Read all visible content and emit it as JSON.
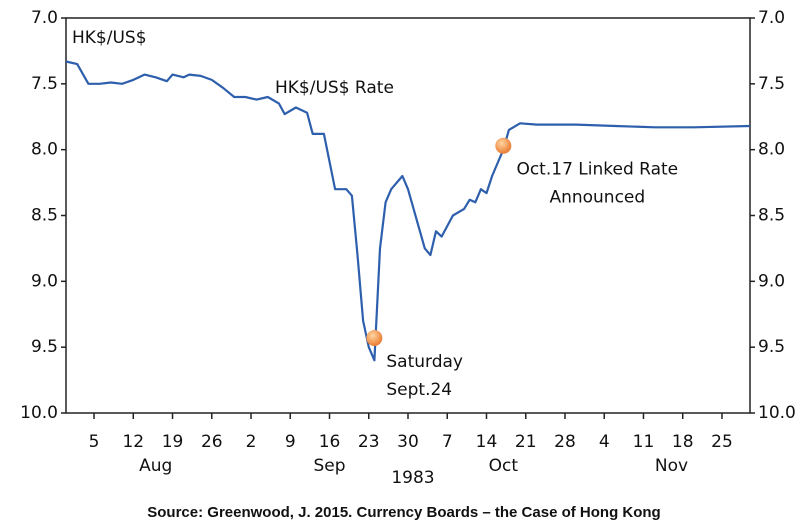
{
  "chart_data": {
    "type": "line",
    "ylabel": "HK$/US$",
    "xlabel": "1983",
    "source": "Source: Greenwood, J. 2015. Currency Boards – the Case of Hong Kong",
    "xlim": [
      "1983-07-31",
      "1983-11-30"
    ],
    "xticks": [
      {
        "value": "1983-08-05",
        "label": "5"
      },
      {
        "value": "1983-08-12",
        "label": "12"
      },
      {
        "value": "1983-08-19",
        "label": "19"
      },
      {
        "value": "1983-08-26",
        "label": "26"
      },
      {
        "value": "1983-09-02",
        "label": "2"
      },
      {
        "value": "1983-09-09",
        "label": "9"
      },
      {
        "value": "1983-09-16",
        "label": "16"
      },
      {
        "value": "1983-09-23",
        "label": "23"
      },
      {
        "value": "1983-09-30",
        "label": "30"
      },
      {
        "value": "1983-10-07",
        "label": "7"
      },
      {
        "value": "1983-10-14",
        "label": "14"
      },
      {
        "value": "1983-10-21",
        "label": "21"
      },
      {
        "value": "1983-10-28",
        "label": "28"
      },
      {
        "value": "1983-11-04",
        "label": "4"
      },
      {
        "value": "1983-11-11",
        "label": "11"
      },
      {
        "value": "1983-11-18",
        "label": "18"
      },
      {
        "value": "1983-11-25",
        "label": "25"
      }
    ],
    "month_labels": [
      {
        "value": "1983-08-16",
        "label": "Aug"
      },
      {
        "value": "1983-09-16",
        "label": "Sep"
      },
      {
        "value": "1983-10-17",
        "label": "Oct"
      },
      {
        "value": "1983-11-16",
        "label": "Nov"
      }
    ],
    "ylim": [
      7,
      10
    ],
    "y_inverted": true,
    "yticks": [
      {
        "value": 7,
        "label": "7.0"
      },
      7.5,
      {
        "value": 8,
        "label": "8.0"
      },
      8.5,
      {
        "value": 9,
        "label": "9.0"
      },
      9.5,
      {
        "value": 10,
        "label": "10.0"
      }
    ],
    "y2lim": [
      7,
      10
    ],
    "y2ticks": [
      {
        "value": 7,
        "label": "7.0"
      },
      7.5,
      {
        "value": 8,
        "label": "8.0"
      },
      8.5,
      {
        "value": 9,
        "label": "9.0"
      },
      9.5,
      {
        "value": 10,
        "label": "10.0"
      }
    ],
    "x": [
      "1983-07-31",
      "1983-08-02",
      "1983-08-04",
      "1983-08-06",
      "1983-08-08",
      "1983-08-10",
      "1983-08-12",
      "1983-08-14",
      "1983-08-16",
      "1983-08-18",
      "1983-08-19",
      "1983-08-21",
      "1983-08-22",
      "1983-08-24",
      "1983-08-26",
      "1983-08-28",
      "1983-08-30",
      "1983-09-01",
      "1983-09-03",
      "1983-09-05",
      "1983-09-07",
      "1983-09-08",
      "1983-09-10",
      "1983-09-12",
      "1983-09-13",
      "1983-09-15",
      "1983-09-17",
      "1983-09-19",
      "1983-09-20",
      "1983-09-21",
      "1983-09-22",
      "1983-09-23",
      "1983-09-24",
      "1983-09-25",
      "1983-09-26",
      "1983-09-27",
      "1983-09-29",
      "1983-09-30",
      "1983-10-02",
      "1983-10-03",
      "1983-10-04",
      "1983-10-05",
      "1983-10-06",
      "1983-10-08",
      "1983-10-10",
      "1983-10-11",
      "1983-10-12",
      "1983-10-13",
      "1983-10-14",
      "1983-10-15",
      "1983-10-17",
      "1983-10-18",
      "1983-10-20",
      "1983-10-23",
      "1983-10-30",
      "1983-11-06",
      "1983-11-13",
      "1983-11-20",
      "1983-11-30"
    ],
    "series": [
      {
        "name": "HK$/US$ Rate",
        "color": "#2e5fad",
        "values": [
          7.33,
          7.35,
          7.5,
          7.5,
          7.49,
          7.5,
          7.47,
          7.43,
          7.45,
          7.48,
          7.43,
          7.45,
          7.43,
          7.44,
          7.47,
          7.53,
          7.6,
          7.6,
          7.62,
          7.6,
          7.65,
          7.73,
          7.68,
          7.72,
          7.88,
          7.88,
          8.3,
          8.3,
          8.35,
          8.8,
          9.3,
          9.5,
          9.6,
          8.75,
          8.4,
          8.3,
          8.2,
          8.3,
          8.6,
          8.75,
          8.8,
          8.62,
          8.66,
          8.5,
          8.45,
          8.38,
          8.4,
          8.3,
          8.33,
          8.2,
          8.0,
          7.85,
          7.8,
          7.81,
          7.81,
          7.82,
          7.83,
          7.83,
          7.82
        ]
      }
    ],
    "annotations": [
      {
        "x": "1983-09-24",
        "y": 9.43,
        "lines": [
          "Saturday",
          "Sept.24"
        ]
      },
      {
        "x": "1983-10-17",
        "y": 7.97,
        "lines": [
          "Oct.17 Linked Rate",
          "Announced"
        ]
      }
    ]
  }
}
